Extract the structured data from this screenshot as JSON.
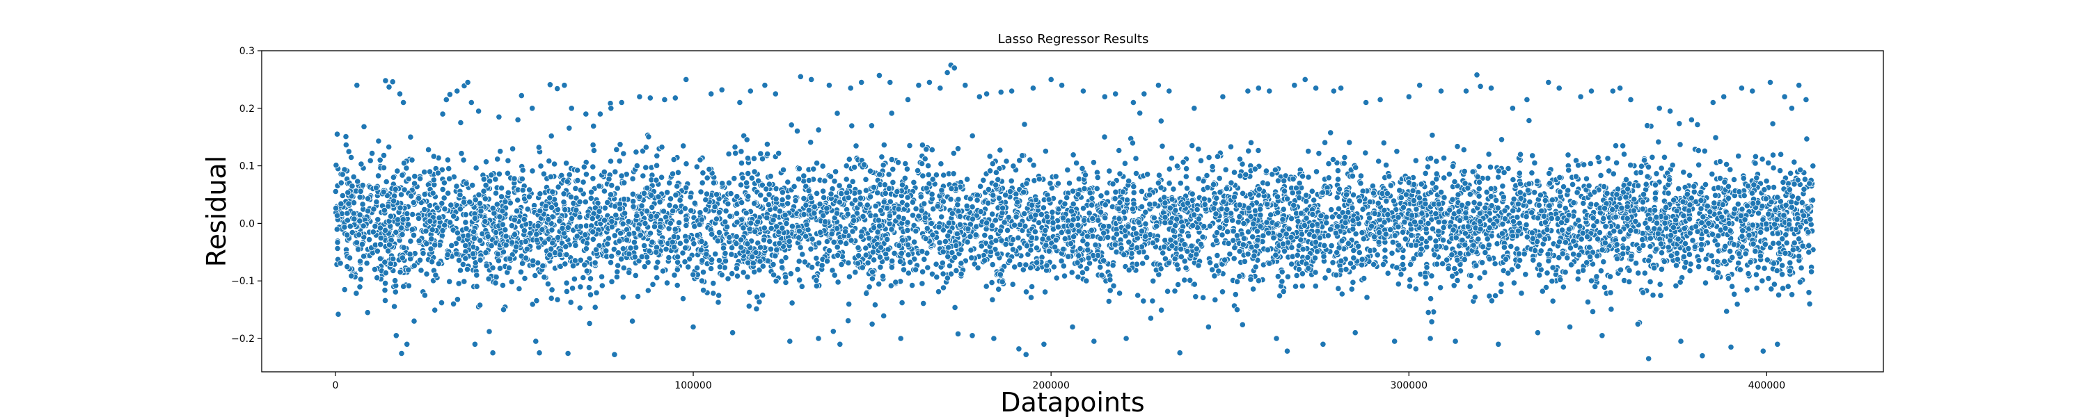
{
  "chart_data": {
    "type": "scatter",
    "title": "Lasso Regressor Results",
    "xlabel": "Datapoints",
    "ylabel": "Residual",
    "xlim": [
      -20600,
      432600
    ],
    "ylim": [
      -0.258,
      0.3
    ],
    "xticks": [
      {
        "value": 0,
        "label": "0"
      },
      {
        "value": 100000,
        "label": "100000"
      },
      {
        "value": 200000,
        "label": "200000"
      },
      {
        "value": 300000,
        "label": "300000"
      },
      {
        "value": 400000,
        "label": "400000"
      }
    ],
    "yticks": [
      {
        "value": -0.2,
        "label": "−0.2"
      },
      {
        "value": -0.1,
        "label": "−0.1"
      },
      {
        "value": 0.0,
        "label": "0.0"
      },
      {
        "value": 0.1,
        "label": "0.1"
      },
      {
        "value": 0.2,
        "label": "0.2"
      },
      {
        "value": 0.3,
        "label": "0.3"
      }
    ],
    "grid": false,
    "marker_color": "#1f77b4",
    "marker_edge_color": "#ffffff",
    "series": [
      {
        "points": [
          [
            500,
            0.155
          ],
          [
            800,
            -0.158
          ],
          [
            2000,
            0.085
          ],
          [
            4000,
            -0.06
          ],
          [
            6000,
            0.24
          ],
          [
            8000,
            0.168
          ],
          [
            9000,
            -0.155
          ],
          [
            11000,
            -0.08
          ],
          [
            12500,
            0.11
          ],
          [
            14000,
            0.248
          ],
          [
            15000,
            0.237
          ],
          [
            16000,
            0.246
          ],
          [
            17000,
            -0.195
          ],
          [
            18000,
            0.225
          ],
          [
            18500,
            -0.226
          ],
          [
            19000,
            0.21
          ],
          [
            20000,
            -0.21
          ],
          [
            21000,
            0.15
          ],
          [
            22000,
            -0.17
          ],
          [
            25000,
            -0.125
          ],
          [
            26000,
            0.128
          ],
          [
            28000,
            -0.09
          ],
          [
            30000,
            0.19
          ],
          [
            31000,
            0.215
          ],
          [
            32000,
            0.224
          ],
          [
            33000,
            -0.14
          ],
          [
            34000,
            0.23
          ],
          [
            35000,
            0.175
          ],
          [
            36000,
            0.239
          ],
          [
            37000,
            0.245
          ],
          [
            38000,
            0.21
          ],
          [
            39000,
            -0.21
          ],
          [
            40000,
            0.195
          ],
          [
            43000,
            -0.188
          ],
          [
            44000,
            -0.225
          ],
          [
            47000,
            -0.15
          ],
          [
            51000,
            0.18
          ],
          [
            52000,
            0.222
          ],
          [
            55000,
            0.2
          ],
          [
            56000,
            -0.205
          ],
          [
            57000,
            -0.225
          ],
          [
            60000,
            0.241
          ],
          [
            62000,
            0.234
          ],
          [
            64000,
            0.24
          ],
          [
            65000,
            -0.226
          ],
          [
            66000,
            0.2
          ],
          [
            70000,
            0.19
          ],
          [
            74000,
            0.19
          ],
          [
            77000,
            0.2
          ],
          [
            78000,
            -0.228
          ],
          [
            80000,
            0.21
          ],
          [
            83000,
            -0.17
          ],
          [
            85000,
            0.22
          ],
          [
            88000,
            0.218
          ],
          [
            92000,
            0.215
          ],
          [
            95000,
            0.218
          ],
          [
            98000,
            0.25
          ],
          [
            100000,
            -0.18
          ],
          [
            105000,
            0.225
          ],
          [
            108000,
            0.232
          ],
          [
            111000,
            -0.19
          ],
          [
            113000,
            0.21
          ],
          [
            116000,
            0.23
          ],
          [
            120000,
            0.24
          ],
          [
            123000,
            0.225
          ],
          [
            127000,
            -0.205
          ],
          [
            130000,
            0.255
          ],
          [
            133000,
            0.25
          ],
          [
            135000,
            -0.2
          ],
          [
            138000,
            0.24
          ],
          [
            141000,
            -0.21
          ],
          [
            144000,
            0.235
          ],
          [
            147000,
            0.245
          ],
          [
            150000,
            -0.175
          ],
          [
            152000,
            0.257
          ],
          [
            155000,
            0.245
          ],
          [
            158000,
            -0.2
          ],
          [
            160000,
            0.215
          ],
          [
            163000,
            0.24
          ],
          [
            166000,
            0.245
          ],
          [
            169000,
            0.235
          ],
          [
            171000,
            0.262
          ],
          [
            172000,
            0.275
          ],
          [
            173000,
            0.27
          ],
          [
            174000,
            -0.192
          ],
          [
            176000,
            0.24
          ],
          [
            178000,
            -0.195
          ],
          [
            180000,
            0.22
          ],
          [
            182000,
            0.225
          ],
          [
            184000,
            -0.2
          ],
          [
            186000,
            0.228
          ],
          [
            189000,
            0.23
          ],
          [
            191000,
            -0.218
          ],
          [
            193000,
            -0.228
          ],
          [
            195000,
            0.235
          ],
          [
            198000,
            -0.21
          ],
          [
            200000,
            0.25
          ],
          [
            203000,
            0.24
          ],
          [
            206000,
            -0.18
          ],
          [
            209000,
            0.23
          ],
          [
            212000,
            -0.205
          ],
          [
            215000,
            0.22
          ],
          [
            218000,
            0.225
          ],
          [
            221000,
            -0.2
          ],
          [
            223000,
            0.21
          ],
          [
            226000,
            0.225
          ],
          [
            230000,
            0.24
          ],
          [
            233000,
            0.23
          ],
          [
            236000,
            -0.225
          ],
          [
            240000,
            0.2
          ],
          [
            244000,
            -0.18
          ],
          [
            248000,
            0.22
          ],
          [
            252000,
            -0.15
          ],
          [
            255000,
            0.23
          ],
          [
            258000,
            0.235
          ],
          [
            261000,
            0.23
          ],
          [
            263000,
            -0.2
          ],
          [
            266000,
            -0.222
          ],
          [
            268000,
            0.24
          ],
          [
            271000,
            0.25
          ],
          [
            274000,
            0.235
          ],
          [
            276000,
            -0.21
          ],
          [
            279000,
            0.23
          ],
          [
            281000,
            0.235
          ],
          [
            285000,
            -0.19
          ],
          [
            288000,
            0.21
          ],
          [
            292000,
            0.215
          ],
          [
            296000,
            -0.205
          ],
          [
            300000,
            0.22
          ],
          [
            303000,
            0.24
          ],
          [
            306000,
            -0.2
          ],
          [
            309000,
            0.23
          ],
          [
            313000,
            -0.205
          ],
          [
            316000,
            0.23
          ],
          [
            319000,
            0.258
          ],
          [
            320000,
            0.238
          ],
          [
            323000,
            0.235
          ],
          [
            325000,
            -0.21
          ],
          [
            329000,
            0.2
          ],
          [
            333000,
            0.215
          ],
          [
            336000,
            -0.19
          ],
          [
            339000,
            0.245
          ],
          [
            342000,
            0.235
          ],
          [
            345000,
            -0.18
          ],
          [
            348000,
            0.22
          ],
          [
            351000,
            0.23
          ],
          [
            354000,
            -0.195
          ],
          [
            357000,
            0.23
          ],
          [
            359000,
            0.235
          ],
          [
            362000,
            0.215
          ],
          [
            364000,
            -0.175
          ],
          [
            367000,
            -0.235
          ],
          [
            370000,
            0.2
          ],
          [
            373000,
            0.195
          ],
          [
            376000,
            -0.205
          ],
          [
            379000,
            0.18
          ],
          [
            382000,
            -0.23
          ],
          [
            385000,
            0.21
          ],
          [
            388000,
            0.22
          ],
          [
            390000,
            -0.215
          ],
          [
            393000,
            0.235
          ],
          [
            396000,
            0.23
          ],
          [
            399000,
            -0.222
          ],
          [
            401000,
            0.245
          ],
          [
            403000,
            -0.21
          ],
          [
            405000,
            0.22
          ],
          [
            407000,
            0.2
          ],
          [
            409000,
            0.24
          ],
          [
            411000,
            0.215
          ],
          [
            412000,
            -0.14
          ]
        ],
        "bulk": {
          "count": 6500,
          "x_range": [
            0,
            413000
          ],
          "center": 0.0,
          "spread": 0.055,
          "clip": 0.24
        }
      }
    ]
  }
}
